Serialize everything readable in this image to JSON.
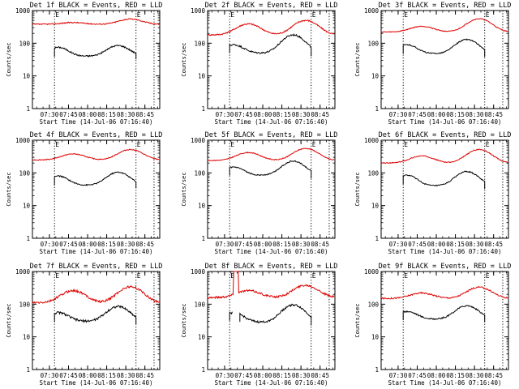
{
  "chart_data": [
    {
      "type": "line",
      "title": "Det 1f BLACK = Events, RED = LLD",
      "ylabel": "Counts/sec",
      "xlabel": "Start Time (14-Jul-06 07:16:40)",
      "x_ticks": [
        "07:30",
        "07:45",
        "08:00",
        "08:15",
        "08:30",
        "08:45"
      ],
      "y_ticks": [
        "1",
        "10",
        "100",
        "1000"
      ],
      "yscale": "log",
      "ylim": [
        1,
        1000
      ],
      "xlim": [
        "07:16:40",
        "08:56:40"
      ],
      "markers": [
        {
          "time": "07:34",
          "label": "E"
        },
        {
          "time": "08:38",
          "label": "E"
        }
      ],
      "grid": false,
      "legend": "none",
      "red_profile": {
        "base": 380,
        "peak1": 430,
        "peak2": 550,
        "noise": 0.04
      },
      "black_profile": {
        "start": "07:34",
        "end": "08:38",
        "edge": 75,
        "trough": 40,
        "hump": 85,
        "noise": 0.05
      },
      "series": [
        {
          "name": "Events",
          "color": "#000000"
        },
        {
          "name": "LLD",
          "color": "#dd0000"
        }
      ]
    },
    {
      "type": "line",
      "title": "Det 2f BLACK = Events, RED = LLD",
      "ylabel": "Counts/sec",
      "xlabel": "Start Time (14-Jul-06 07:16:40)",
      "x_ticks": [
        "07:30",
        "07:45",
        "08:00",
        "08:15",
        "08:30",
        "08:45"
      ],
      "y_ticks": [
        "1",
        "10",
        "100",
        "1000"
      ],
      "yscale": "log",
      "ylim": [
        1,
        1000
      ],
      "xlim": [
        "07:16:40",
        "08:56:40"
      ],
      "markers": [
        {
          "time": "07:34",
          "label": "E"
        },
        {
          "time": "08:38",
          "label": "E"
        }
      ],
      "grid": false,
      "legend": "none",
      "red_profile": {
        "base": 180,
        "peak1": 390,
        "peak2": 500,
        "noise": 0.05
      },
      "black_profile": {
        "start": "07:34",
        "end": "08:38",
        "edge": 90,
        "trough": 50,
        "hump": 180,
        "noise": 0.06
      },
      "series": [
        {
          "name": "Events",
          "color": "#000000"
        },
        {
          "name": "LLD",
          "color": "#dd0000"
        }
      ]
    },
    {
      "type": "line",
      "title": "Det 3f BLACK = Events, RED = LLD",
      "ylabel": "Counts/sec",
      "xlabel": "Start Time (14-Jul-06 07:16:40)",
      "x_ticks": [
        "07:30",
        "07:45",
        "08:00",
        "08:15",
        "08:30",
        "08:45"
      ],
      "y_ticks": [
        "1",
        "10",
        "100",
        "1000"
      ],
      "yscale": "log",
      "ylim": [
        1,
        1000
      ],
      "xlim": [
        "07:16:40",
        "08:56:40"
      ],
      "markers": [
        {
          "time": "07:34",
          "label": "E"
        },
        {
          "time": "08:38",
          "label": "E"
        }
      ],
      "grid": false,
      "legend": "none",
      "red_profile": {
        "base": 220,
        "peak1": 330,
        "peak2": 560,
        "noise": 0.03
      },
      "black_profile": {
        "start": "07:34",
        "end": "08:38",
        "edge": 90,
        "trough": 48,
        "hump": 130,
        "noise": 0.04
      },
      "series": [
        {
          "name": "Events",
          "color": "#000000"
        },
        {
          "name": "LLD",
          "color": "#dd0000"
        }
      ]
    },
    {
      "type": "line",
      "title": "Det 4f BLACK = Events, RED = LLD",
      "ylabel": "Counts/sec",
      "xlabel": "Start Time (14-Jul-06 07:16:40)",
      "x_ticks": [
        "07:30",
        "07:45",
        "08:00",
        "08:15",
        "08:30",
        "08:45"
      ],
      "y_ticks": [
        "1",
        "10",
        "100",
        "1000"
      ],
      "yscale": "log",
      "ylim": [
        1,
        1000
      ],
      "xlim": [
        "07:16:40",
        "08:56:40"
      ],
      "markers": [
        {
          "time": "07:34",
          "label": "E"
        },
        {
          "time": "08:38",
          "label": "E"
        }
      ],
      "grid": false,
      "legend": "none",
      "red_profile": {
        "base": 250,
        "peak1": 380,
        "peak2": 520,
        "noise": 0.03
      },
      "black_profile": {
        "start": "07:34",
        "end": "08:38",
        "edge": 80,
        "trough": 42,
        "hump": 105,
        "noise": 0.04
      },
      "series": [
        {
          "name": "Events",
          "color": "#000000"
        },
        {
          "name": "LLD",
          "color": "#dd0000"
        }
      ]
    },
    {
      "type": "line",
      "title": "Det 5f BLACK = Events, RED = LLD",
      "ylabel": "Counts/sec",
      "xlabel": "Start Time (14-Jul-06 07:16:40)",
      "x_ticks": [
        "07:30",
        "07:45",
        "08:00",
        "08:15",
        "08:30",
        "08:45"
      ],
      "y_ticks": [
        "1",
        "10",
        "100",
        "1000"
      ],
      "yscale": "log",
      "ylim": [
        1,
        1000
      ],
      "xlim": [
        "07:16:40",
        "08:56:40"
      ],
      "markers": [
        {
          "time": "07:34",
          "label": "E"
        },
        {
          "time": "08:38",
          "label": "E"
        }
      ],
      "grid": false,
      "legend": "none",
      "red_profile": {
        "base": 240,
        "peak1": 420,
        "peak2": 560,
        "noise": 0.03
      },
      "black_profile": {
        "start": "07:34",
        "end": "08:38",
        "edge": 150,
        "trough": 85,
        "hump": 230,
        "noise": 0.04
      },
      "series": [
        {
          "name": "Events",
          "color": "#000000"
        },
        {
          "name": "LLD",
          "color": "#dd0000"
        }
      ]
    },
    {
      "type": "line",
      "title": "Det 6f BLACK = Events, RED = LLD",
      "ylabel": "Counts/sec",
      "xlabel": "Start Time (14-Jul-06 07:16:40)",
      "x_ticks": [
        "07:30",
        "07:45",
        "08:00",
        "08:15",
        "08:30",
        "08:45"
      ],
      "y_ticks": [
        "1",
        "10",
        "100",
        "1000"
      ],
      "yscale": "log",
      "ylim": [
        1,
        1000
      ],
      "xlim": [
        "07:16:40",
        "08:56:40"
      ],
      "markers": [
        {
          "time": "07:34",
          "label": "E"
        },
        {
          "time": "08:38",
          "label": "E"
        }
      ],
      "grid": false,
      "legend": "none",
      "red_profile": {
        "base": 200,
        "peak1": 330,
        "peak2": 520,
        "noise": 0.03
      },
      "black_profile": {
        "start": "07:34",
        "end": "08:38",
        "edge": 85,
        "trough": 40,
        "hump": 110,
        "noise": 0.04
      },
      "series": [
        {
          "name": "Events",
          "color": "#000000"
        },
        {
          "name": "LLD",
          "color": "#dd0000"
        }
      ]
    },
    {
      "type": "line",
      "title": "Det 7f BLACK = Events, RED = LLD",
      "ylabel": "Counts/sec",
      "xlabel": "Start Time (14-Jul-06 07:16:40)",
      "x_ticks": [
        "07:30",
        "07:45",
        "08:00",
        "08:15",
        "08:30",
        "08:45"
      ],
      "y_ticks": [
        "1",
        "10",
        "100",
        "1000"
      ],
      "yscale": "log",
      "ylim": [
        1,
        1000
      ],
      "xlim": [
        "07:16:40",
        "08:56:40"
      ],
      "markers": [
        {
          "time": "07:34",
          "label": "E"
        },
        {
          "time": "08:38",
          "label": "E"
        }
      ],
      "grid": false,
      "legend": "none",
      "red_profile": {
        "base": 110,
        "peak1": 260,
        "peak2": 340,
        "noise": 0.08
      },
      "black_profile": {
        "start": "07:34",
        "end": "08:38",
        "edge": 55,
        "trough": 30,
        "hump": 85,
        "noise": 0.08
      },
      "series": [
        {
          "name": "Events",
          "color": "#000000"
        },
        {
          "name": "LLD",
          "color": "#dd0000"
        }
      ]
    },
    {
      "type": "line",
      "title": "Det 8f BLACK = Events, RED = LLD",
      "ylabel": "Counts/sec",
      "xlabel": "Start Time (14-Jul-06 07:16:40)",
      "x_ticks": [
        "07:30",
        "07:45",
        "08:00",
        "08:15",
        "08:30",
        "08:45"
      ],
      "y_ticks": [
        "1",
        "10",
        "100",
        "1000"
      ],
      "yscale": "log",
      "ylim": [
        1,
        1000
      ],
      "xlim": [
        "07:16:40",
        "08:56:40"
      ],
      "markers": [
        {
          "time": "07:34",
          "label": "E"
        },
        {
          "time": "08:38",
          "label": "E"
        }
      ],
      "grid": false,
      "legend": "none",
      "red_profile": {
        "base": 160,
        "peak1": 260,
        "peak2": 380,
        "noise": 0.07,
        "spike": [
          "07:37",
          "07:41",
          1000
        ]
      },
      "black_profile": {
        "start": "07:34",
        "end": "08:38",
        "edge": 55,
        "trough": 28,
        "hump": 95,
        "noise": 0.07,
        "gap": [
          "07:36",
          "07:42"
        ]
      },
      "series": [
        {
          "name": "Events",
          "color": "#000000"
        },
        {
          "name": "LLD",
          "color": "#dd0000"
        }
      ]
    },
    {
      "type": "line",
      "title": "Det 9f BLACK = Events, RED = LLD",
      "ylabel": "Counts/sec",
      "xlabel": "Start Time (14-Jul-06 07:16:40)",
      "x_ticks": [
        "07:30",
        "07:45",
        "08:00",
        "08:15",
        "08:30",
        "08:45"
      ],
      "y_ticks": [
        "1",
        "10",
        "100",
        "1000"
      ],
      "yscale": "log",
      "ylim": [
        1,
        1000
      ],
      "xlim": [
        "07:16:40",
        "08:56:40"
      ],
      "markers": [
        {
          "time": "07:34",
          "label": "E"
        },
        {
          "time": "08:38",
          "label": "E"
        }
      ],
      "grid": false,
      "legend": "none",
      "red_profile": {
        "base": 150,
        "peak1": 220,
        "peak2": 330,
        "noise": 0.05
      },
      "black_profile": {
        "start": "07:34",
        "end": "08:38",
        "edge": 60,
        "trough": 35,
        "hump": 90,
        "noise": 0.05
      },
      "series": [
        {
          "name": "Events",
          "color": "#000000"
        },
        {
          "name": "LLD",
          "color": "#dd0000"
        }
      ]
    }
  ]
}
